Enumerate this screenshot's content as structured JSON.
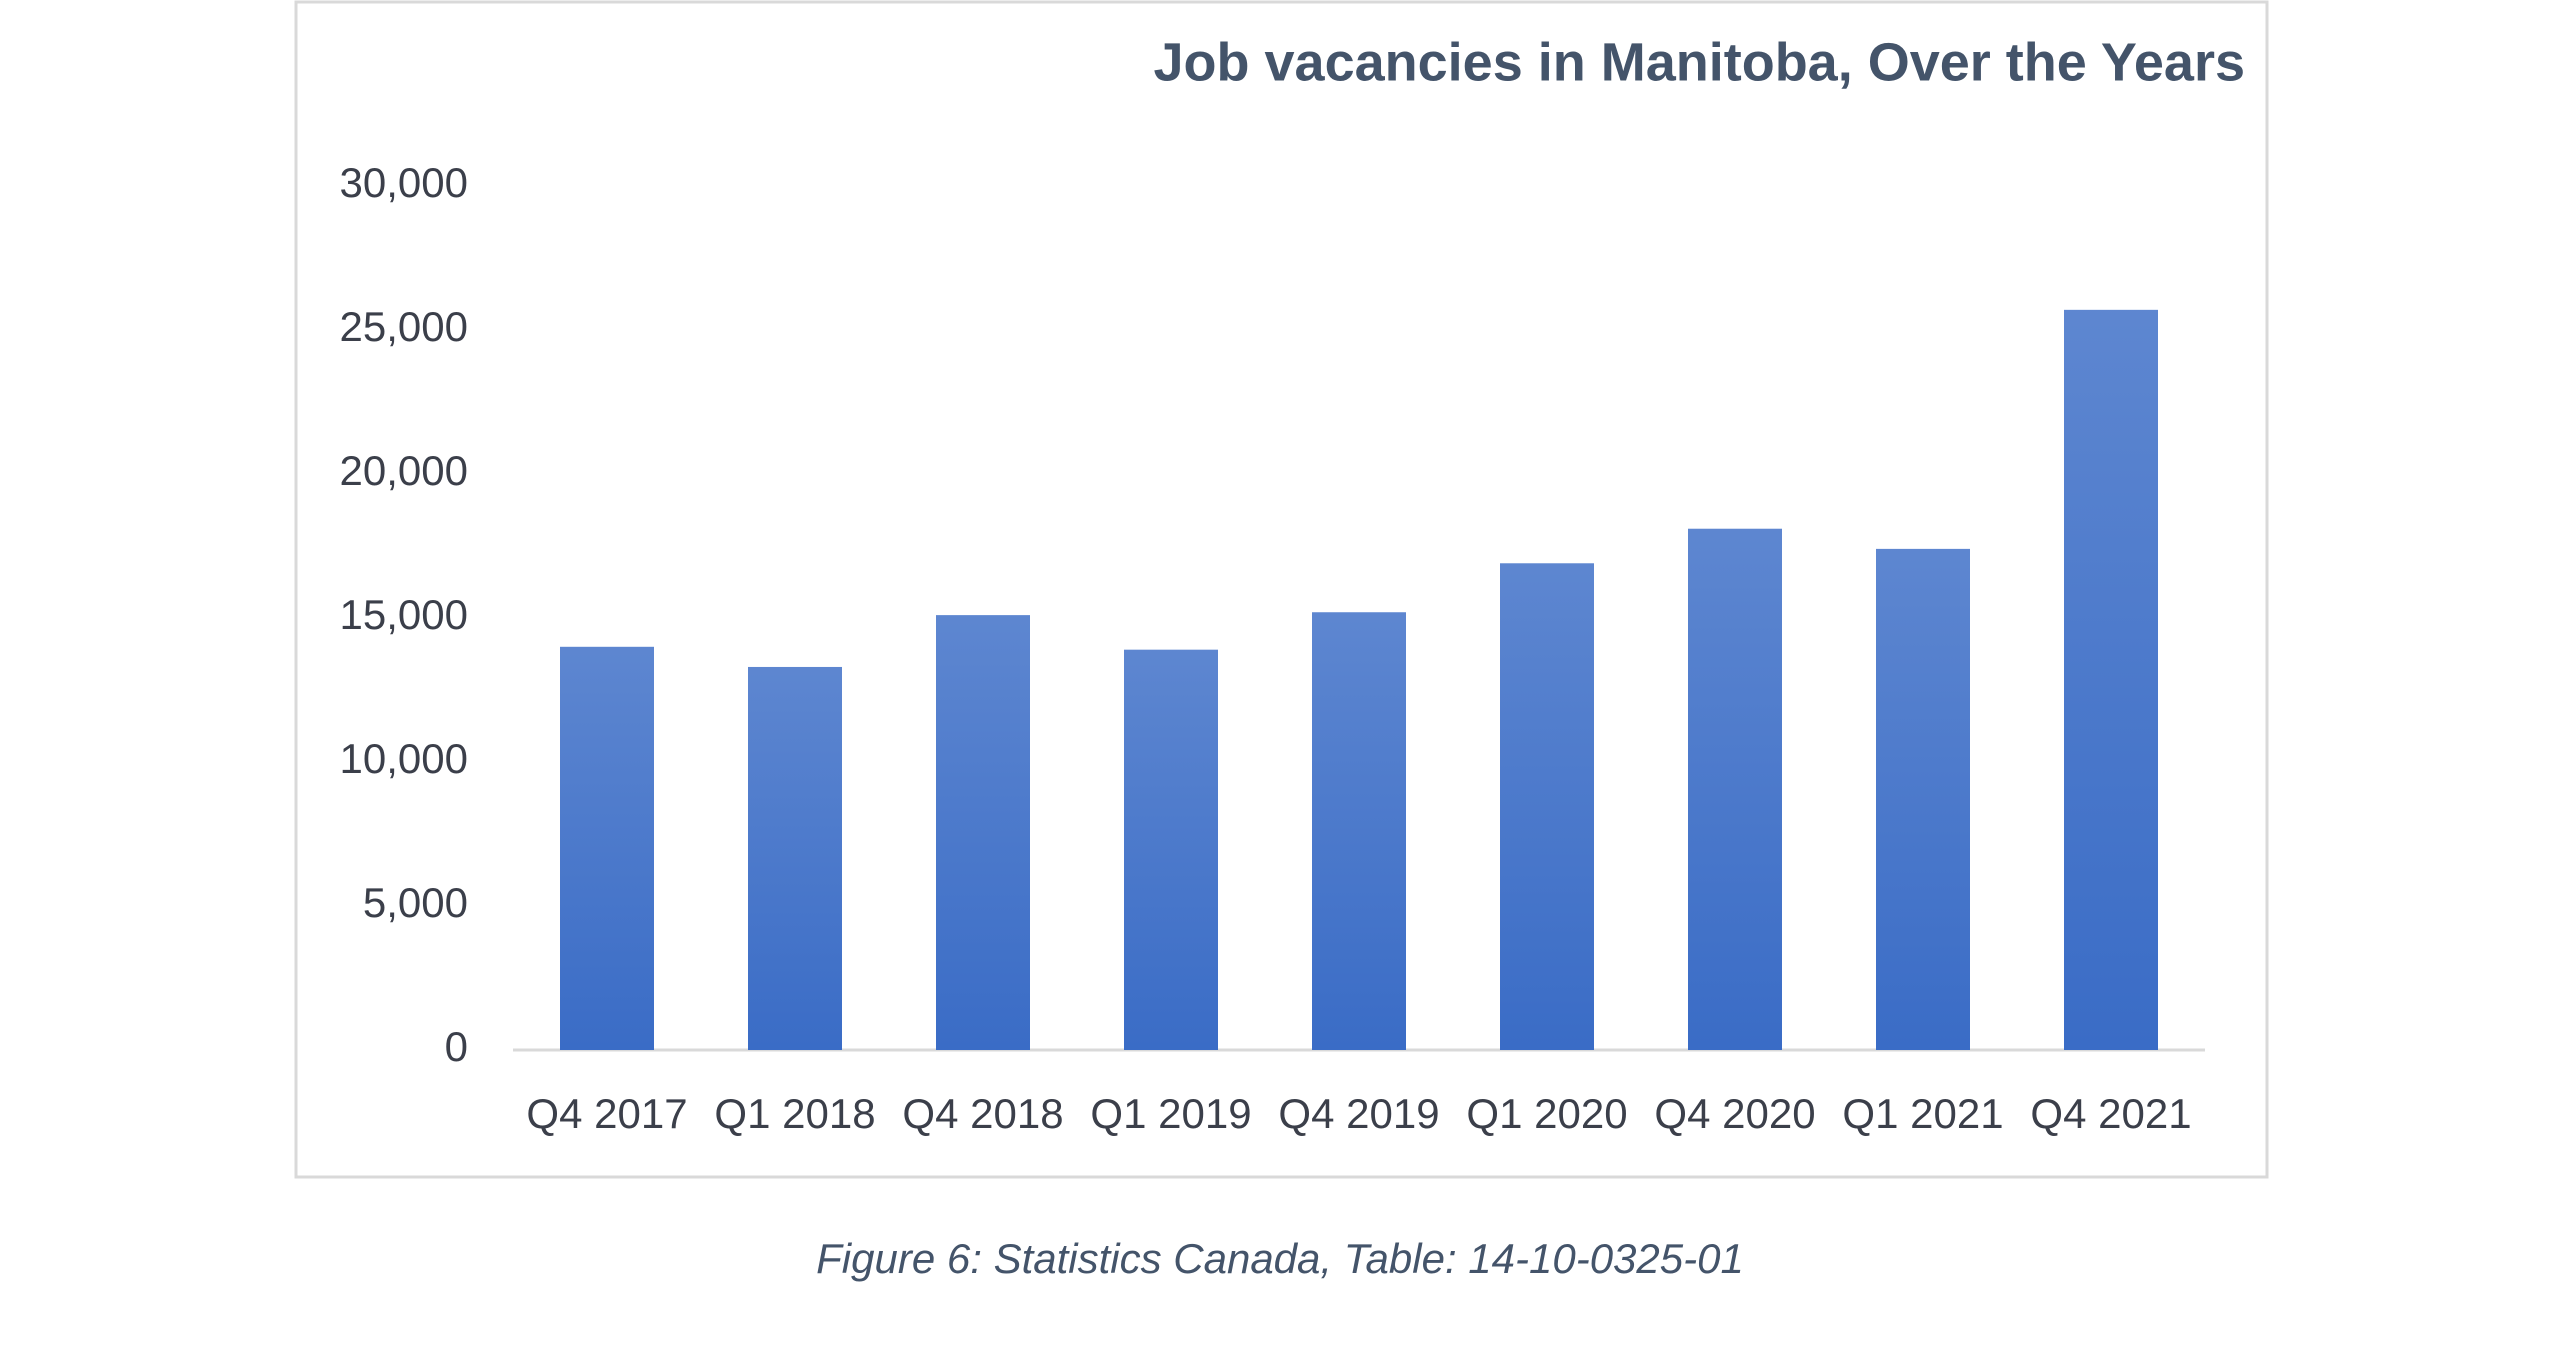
{
  "chart_data": {
    "type": "bar",
    "title": "Job vacancies in Manitoba, Over the Years",
    "categories": [
      "Q4 2017",
      "Q1 2018",
      "Q4 2018",
      "Q1 2019",
      "Q4 2019",
      "Q1 2020",
      "Q4 2020",
      "Q1 2021",
      "Q4 2021"
    ],
    "values": [
      14000,
      13300,
      15100,
      13900,
      15200,
      16900,
      18100,
      17400,
      25700
    ],
    "color": "#3a6cc6",
    "ylim": [
      0,
      30000
    ],
    "yticks": [
      0,
      {
        "value": 5000,
        "label": "5,000"
      },
      {
        "value": 10000,
        "label": "10,000"
      },
      {
        "value": 15000,
        "label": "15,000"
      },
      {
        "value": 20000,
        "label": "20,000"
      },
      {
        "value": 25000,
        "label": "25,000"
      },
      {
        "value": 30000,
        "label": "30,000"
      }
    ],
    "grid": false
  },
  "caption": "Figure 6: Statistics Canada, Table: 14-10-0325-01"
}
